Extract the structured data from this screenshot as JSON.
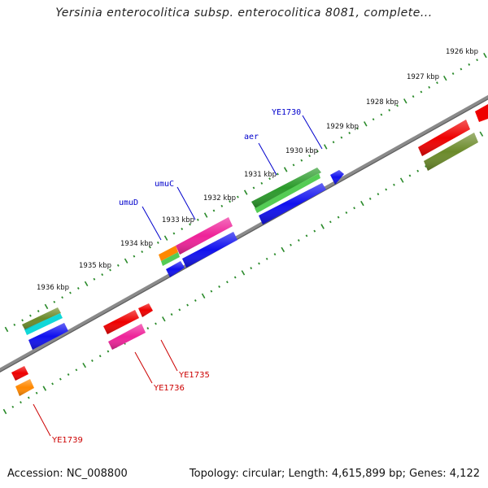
{
  "title": "Yersinia enterocolitica subsp. enterocolitica 8081, complete...",
  "footer": {
    "accession": "Accession: NC_008800",
    "topology": "Topology: circular; Length: 4,615,899 bp; Genes: 4,122"
  },
  "scale_labels": [
    "1926 kbp",
    "1927 kbp",
    "1928 kbp",
    "1929 kbp",
    "1930 kbp",
    "1931 kbp",
    "1932 kbp",
    "1933 kbp",
    "1934 kbp",
    "1935 kbp",
    "1936 kbp"
  ],
  "top_labels": [
    "YE1730",
    "aer",
    "umuC",
    "umuD"
  ],
  "bottom_labels": [
    "YE1735",
    "YE1736",
    "YE1739"
  ],
  "colors": {
    "backbone": "#8a8a8a",
    "tick": "#2a8a2a",
    "top_label": "#0000cc",
    "bottom_label": "#cc0000",
    "red": "#ee0000",
    "blue": "#1010ee",
    "green": "#2a9a2a",
    "olive": "#6b8a2a",
    "magenta": "#ee2299",
    "orange": "#ff8800",
    "cyan": "#10d8d8"
  }
}
